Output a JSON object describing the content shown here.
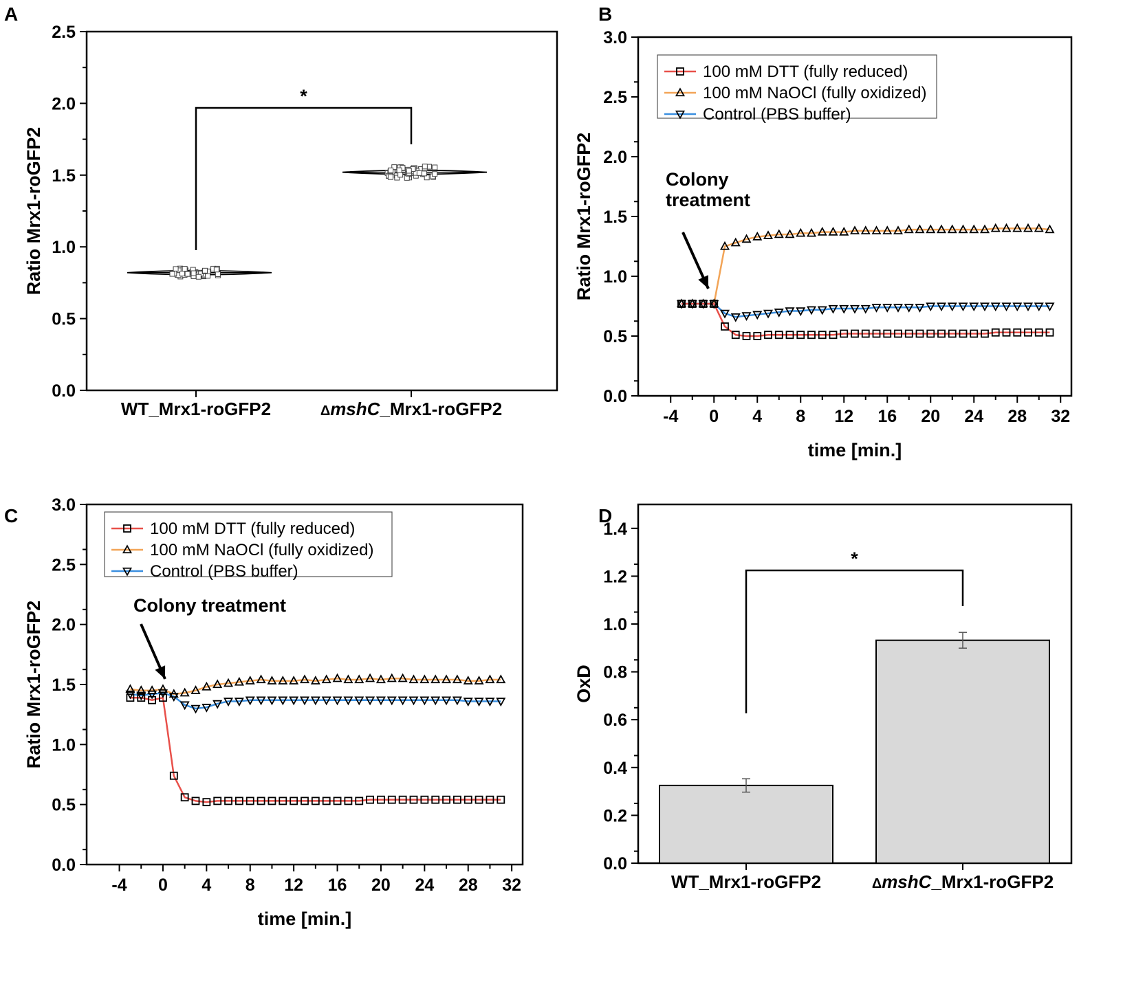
{
  "panels": {
    "A": "A",
    "B": "B",
    "C": "C",
    "D": "D"
  },
  "colors": {
    "dtt": "#e8504a",
    "naocl": "#f2a457",
    "control": "#3a8fe0",
    "bar": "#d9d9d9"
  },
  "chart_data": [
    {
      "panel": "A",
      "type": "violin",
      "ylabel": "Ratio Mrx1-roGFP2",
      "ylim": [
        0,
        2.5
      ],
      "yticks": [
        "0.0",
        "0.5",
        "1.0",
        "1.5",
        "2.0",
        "2.5"
      ],
      "categories": [
        "WT_Mrx1-roGFP2",
        "mshC_Mrx1-roGFP2"
      ],
      "category_prefix": [
        "",
        "Δ"
      ],
      "category_italic_part": [
        "",
        "mshC"
      ],
      "category_suffix": [
        "WT_Mrx1-roGFP2",
        "_Mrx1-roGFP2"
      ],
      "values": [
        0.82,
        1.52
      ],
      "spread": [
        0.03,
        0.04
      ],
      "significance": "*"
    },
    {
      "panel": "B",
      "type": "line",
      "ylabel": "Ratio Mrx1-roGFP2",
      "xlabel": "time [min.]",
      "ylim": [
        0,
        3.0
      ],
      "xlim": [
        -7,
        33
      ],
      "yticks": [
        "0.0",
        "0.5",
        "1.0",
        "1.5",
        "2.0",
        "2.5",
        "3.0"
      ],
      "xticks": [
        "-4",
        "0",
        "4",
        "8",
        "12",
        "16",
        "20",
        "24",
        "28",
        "32"
      ],
      "x": [
        -3,
        -2,
        -1,
        0,
        1,
        2,
        3,
        4,
        5,
        6,
        7,
        8,
        9,
        10,
        11,
        12,
        13,
        14,
        15,
        16,
        17,
        18,
        19,
        20,
        21,
        22,
        23,
        24,
        25,
        26,
        27,
        28,
        29,
        30,
        31
      ],
      "series": [
        {
          "name": "100 mM DTT (fully reduced)",
          "marker": "square",
          "values": [
            0.77,
            0.77,
            0.77,
            0.77,
            0.58,
            0.51,
            0.5,
            0.5,
            0.51,
            0.51,
            0.51,
            0.51,
            0.51,
            0.51,
            0.51,
            0.52,
            0.52,
            0.52,
            0.52,
            0.52,
            0.52,
            0.52,
            0.52,
            0.52,
            0.52,
            0.52,
            0.52,
            0.52,
            0.52,
            0.53,
            0.53,
            0.53,
            0.53,
            0.53,
            0.53
          ]
        },
        {
          "name": "100 mM NaOCl (fully oxidized)",
          "marker": "triangle-up",
          "values": [
            0.77,
            0.77,
            0.77,
            0.77,
            1.25,
            1.28,
            1.31,
            1.33,
            1.34,
            1.35,
            1.35,
            1.36,
            1.36,
            1.37,
            1.37,
            1.37,
            1.38,
            1.38,
            1.38,
            1.38,
            1.38,
            1.39,
            1.39,
            1.39,
            1.39,
            1.39,
            1.39,
            1.39,
            1.39,
            1.4,
            1.4,
            1.4,
            1.4,
            1.4,
            1.39
          ]
        },
        {
          "name": "Control (PBS buffer)",
          "marker": "triangle-down",
          "values": [
            0.77,
            0.77,
            0.77,
            0.77,
            0.69,
            0.66,
            0.67,
            0.68,
            0.69,
            0.7,
            0.71,
            0.71,
            0.72,
            0.72,
            0.73,
            0.73,
            0.73,
            0.73,
            0.74,
            0.74,
            0.74,
            0.74,
            0.74,
            0.75,
            0.75,
            0.75,
            0.75,
            0.75,
            0.75,
            0.75,
            0.75,
            0.75,
            0.75,
            0.75,
            0.75
          ]
        }
      ],
      "annotation": [
        "Colony",
        "treatment"
      ]
    },
    {
      "panel": "C",
      "type": "line",
      "ylabel": "Ratio Mrx1-roGFP2",
      "xlabel": "time [min.]",
      "ylim": [
        0,
        3.0
      ],
      "xlim": [
        -7,
        33
      ],
      "yticks": [
        "0.0",
        "0.5",
        "1.0",
        "1.5",
        "2.0",
        "2.5",
        "3.0"
      ],
      "xticks": [
        "-4",
        "0",
        "4",
        "8",
        "12",
        "16",
        "20",
        "24",
        "28",
        "32"
      ],
      "x": [
        -3,
        -2,
        -1,
        0,
        1,
        2,
        3,
        4,
        5,
        6,
        7,
        8,
        9,
        10,
        11,
        12,
        13,
        14,
        15,
        16,
        17,
        18,
        19,
        20,
        21,
        22,
        23,
        24,
        25,
        26,
        27,
        28,
        29,
        30,
        31
      ],
      "series": [
        {
          "name": "100 mM DTT (fully reduced)",
          "marker": "square",
          "values": [
            1.39,
            1.39,
            1.37,
            1.39,
            0.74,
            0.56,
            0.53,
            0.52,
            0.53,
            0.53,
            0.53,
            0.53,
            0.53,
            0.53,
            0.53,
            0.53,
            0.53,
            0.53,
            0.53,
            0.53,
            0.53,
            0.53,
            0.54,
            0.54,
            0.54,
            0.54,
            0.54,
            0.54,
            0.54,
            0.54,
            0.54,
            0.54,
            0.54,
            0.54,
            0.54
          ]
        },
        {
          "name": "100 mM NaOCl (fully oxidized)",
          "marker": "triangle-up",
          "values": [
            1.46,
            1.45,
            1.45,
            1.46,
            1.42,
            1.43,
            1.45,
            1.48,
            1.5,
            1.51,
            1.52,
            1.53,
            1.54,
            1.53,
            1.53,
            1.53,
            1.54,
            1.53,
            1.54,
            1.55,
            1.54,
            1.54,
            1.55,
            1.54,
            1.55,
            1.55,
            1.54,
            1.54,
            1.54,
            1.54,
            1.54,
            1.53,
            1.53,
            1.54,
            1.54
          ]
        },
        {
          "name": "Control (PBS buffer)",
          "marker": "triangle-down",
          "values": [
            1.42,
            1.41,
            1.42,
            1.43,
            1.4,
            1.33,
            1.3,
            1.31,
            1.34,
            1.36,
            1.36,
            1.37,
            1.37,
            1.37,
            1.37,
            1.37,
            1.37,
            1.37,
            1.37,
            1.37,
            1.37,
            1.37,
            1.37,
            1.37,
            1.37,
            1.37,
            1.37,
            1.37,
            1.37,
            1.37,
            1.37,
            1.36,
            1.36,
            1.36,
            1.36
          ]
        }
      ],
      "annotation": [
        "Colony treatment"
      ]
    },
    {
      "panel": "D",
      "type": "bar",
      "ylabel": "OxD",
      "ylim": [
        0,
        1.5
      ],
      "yticks": [
        "0.0",
        "0.2",
        "0.4",
        "0.6",
        "0.8",
        "1.0",
        "1.2",
        "1.4"
      ],
      "categories": [
        "WT_Mrx1-roGFP2",
        "mshC_Mrx1-roGFP2"
      ],
      "category_prefix": [
        "",
        "Δ"
      ],
      "category_italic_part": [
        "",
        "mshC"
      ],
      "category_suffix": [
        "WT_Mrx1-roGFP2",
        "_Mrx1-roGFP2"
      ],
      "values": [
        0.325,
        0.932
      ],
      "errors": [
        0.028,
        0.033
      ],
      "significance": "*"
    }
  ]
}
